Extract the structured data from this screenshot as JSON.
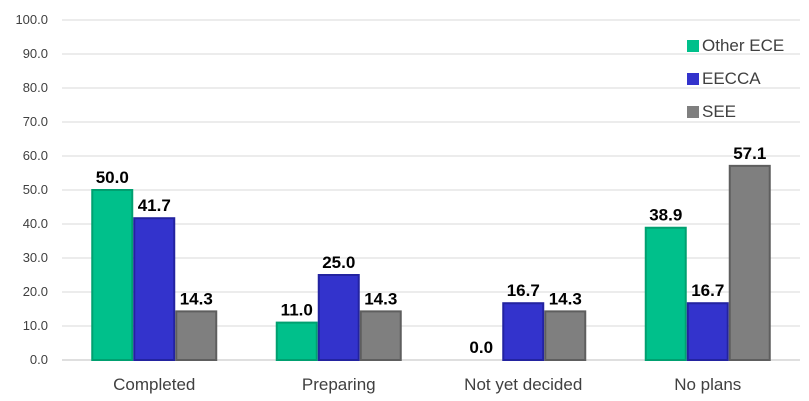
{
  "chart_data": {
    "type": "bar",
    "categories": [
      "Completed",
      "Preparing",
      "Not yet decided",
      "No plans"
    ],
    "series": [
      {
        "name": "Other ECE",
        "color": "#00c08b",
        "edge": "#00a070",
        "values": [
          50.0,
          11.0,
          0.0,
          38.9
        ]
      },
      {
        "name": "EECCA",
        "color": "#3333cc",
        "edge": "#2323a0",
        "values": [
          41.7,
          25.0,
          16.7,
          16.7
        ]
      },
      {
        "name": "SEE",
        "color": "#7f7f7f",
        "edge": "#5e5e5e",
        "values": [
          14.3,
          14.3,
          14.3,
          57.1
        ]
      }
    ],
    "ylim": [
      0,
      100
    ],
    "yticks": [
      "0.0",
      "10.0",
      "20.0",
      "30.0",
      "40.0",
      "50.0",
      "60.0",
      "70.0",
      "80.0",
      "90.0",
      "100.0"
    ],
    "gridlines": true,
    "legend_position": "top-right",
    "data_labels": true
  }
}
